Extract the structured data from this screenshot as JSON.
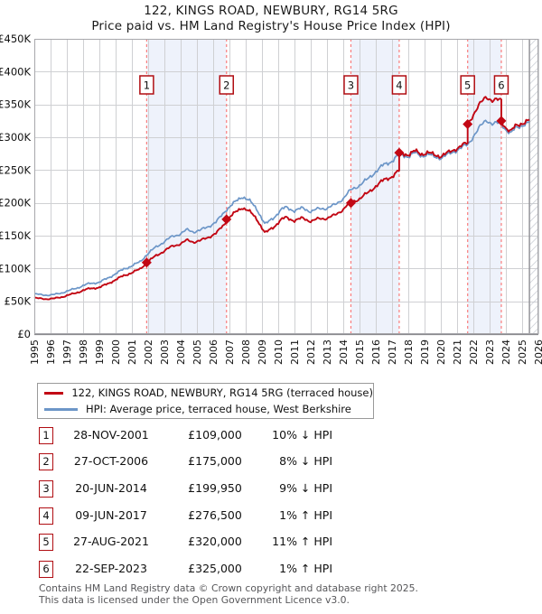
{
  "title": {
    "line1": "122, KINGS ROAD, NEWBURY, RG14 5RG",
    "line2": "Price paid vs. HM Land Registry's House Price Index (HPI)"
  },
  "legend": {
    "items": [
      {
        "label": "122, KINGS ROAD, NEWBURY, RG14 5RG (terraced house)",
        "color": "#c20714"
      },
      {
        "label": "HPI: Average price, terraced house, West Berkshire",
        "color": "#6c96c8"
      }
    ]
  },
  "transactions": [
    {
      "n": "1",
      "date": "28-NOV-2001",
      "price": "£109,000",
      "vs_hpi": "10% ↓ HPI",
      "year_frac": 2001.91,
      "price_k": 109
    },
    {
      "n": "2",
      "date": "27-OCT-2006",
      "price": "£175,000",
      "vs_hpi": "8% ↓ HPI",
      "year_frac": 2006.82,
      "price_k": 175
    },
    {
      "n": "3",
      "date": "20-JUN-2014",
      "price": "£199,950",
      "vs_hpi": "9% ↓ HPI",
      "year_frac": 2014.47,
      "price_k": 199.95
    },
    {
      "n": "4",
      "date": "09-JUN-2017",
      "price": "£276,500",
      "vs_hpi": "1% ↑ HPI",
      "year_frac": 2017.44,
      "price_k": 276.5
    },
    {
      "n": "5",
      "date": "27-AUG-2021",
      "price": "£320,000",
      "vs_hpi": "11% ↑ HPI",
      "year_frac": 2021.65,
      "price_k": 320
    },
    {
      "n": "6",
      "date": "22-SEP-2023",
      "price": "£325,000",
      "vs_hpi": "1% ↑ HPI",
      "year_frac": 2023.72,
      "price_k": 325
    }
  ],
  "footer": {
    "line1": "Contains HM Land Registry data © Crown copyright and database right 2025.",
    "line2": "This data is licensed under the Open Government Licence v3.0."
  },
  "chart_data": {
    "type": "line",
    "title": "Price paid vs. HM Land Registry's House Price Index (HPI)",
    "xlim": [
      1995,
      2026
    ],
    "ylim": [
      0,
      450000
    ],
    "grid": true,
    "legend_position": "below",
    "x_tick_labels": [
      "1995",
      "1996",
      "1997",
      "1998",
      "1999",
      "2000",
      "2001",
      "2002",
      "2003",
      "2004",
      "2005",
      "2006",
      "2007",
      "2008",
      "2009",
      "2010",
      "2011",
      "2012",
      "2013",
      "2014",
      "2015",
      "2016",
      "2017",
      "2018",
      "2019",
      "2020",
      "2021",
      "2022",
      "2023",
      "2024",
      "2025",
      "2026"
    ],
    "y_ticks_k": [
      0,
      50,
      100,
      150,
      200,
      250,
      300,
      350,
      400,
      450
    ],
    "y_tick_labels": [
      "£0",
      "£50K",
      "£100K",
      "£150K",
      "£200K",
      "£250K",
      "£300K",
      "£350K",
      "£400K",
      "£450K"
    ],
    "ownership_bands": [
      [
        2001.91,
        2006.82
      ],
      [
        2014.47,
        2017.44
      ],
      [
        2021.65,
        2023.72
      ]
    ],
    "hatch_from": 2025.45,
    "colors": {
      "property": "#c20714",
      "hpi": "#6c96c8",
      "event_line": "#f97d7d",
      "band": "#eef2fb",
      "grid": "#cfd0d3",
      "border": "#a8a8ac",
      "marker_box_border": "#b00d12"
    },
    "series": [
      {
        "name": "HPI: Average price, terraced house, West Berkshire",
        "units": "GBP_thousands",
        "anchors": [
          [
            1995.0,
            61
          ],
          [
            1995.4,
            60
          ],
          [
            1995.8,
            59.5
          ],
          [
            1996.2,
            60
          ],
          [
            1996.7,
            63
          ],
          [
            1997.1,
            66
          ],
          [
            1997.6,
            70
          ],
          [
            1998.0,
            74
          ],
          [
            1998.4,
            77
          ],
          [
            1999.0,
            79
          ],
          [
            1999.5,
            85
          ],
          [
            2000.0,
            92
          ],
          [
            2000.5,
            99
          ],
          [
            2001.0,
            104
          ],
          [
            2001.5,
            110
          ],
          [
            2001.91,
            121.1
          ],
          [
            2002.5,
            133
          ],
          [
            2003.0,
            141
          ],
          [
            2003.5,
            149
          ],
          [
            2004.0,
            153
          ],
          [
            2004.4,
            159
          ],
          [
            2004.8,
            156
          ],
          [
            2005.2,
            158
          ],
          [
            2005.7,
            164
          ],
          [
            2006.2,
            171
          ],
          [
            2006.82,
            190.2
          ],
          [
            2007.3,
            200
          ],
          [
            2007.8,
            210
          ],
          [
            2008.2,
            204
          ],
          [
            2008.7,
            190
          ],
          [
            2009.2,
            167
          ],
          [
            2009.7,
            177
          ],
          [
            2010.2,
            190
          ],
          [
            2010.5,
            193
          ],
          [
            2011.0,
            188
          ],
          [
            2011.5,
            192
          ],
          [
            2012.0,
            187
          ],
          [
            2012.5,
            191
          ],
          [
            2013.0,
            192
          ],
          [
            2013.5,
            197
          ],
          [
            2014.0,
            207
          ],
          [
            2014.47,
            219.7
          ],
          [
            2015.0,
            227
          ],
          [
            2015.5,
            236
          ],
          [
            2016.0,
            248
          ],
          [
            2016.5,
            258
          ],
          [
            2017.0,
            264
          ],
          [
            2017.44,
            273.8
          ],
          [
            2018.0,
            271
          ],
          [
            2018.4,
            276
          ],
          [
            2018.8,
            272
          ],
          [
            2019.2,
            274
          ],
          [
            2019.6,
            270
          ],
          [
            2020.0,
            269
          ],
          [
            2020.5,
            274
          ],
          [
            2021.0,
            281
          ],
          [
            2021.65,
            288.3
          ],
          [
            2022.0,
            302
          ],
          [
            2022.4,
            315
          ],
          [
            2022.8,
            327
          ],
          [
            2023.2,
            320
          ],
          [
            2023.72,
            321.8
          ],
          [
            2024.0,
            312
          ],
          [
            2024.3,
            305
          ],
          [
            2024.6,
            314
          ],
          [
            2024.9,
            318
          ],
          [
            2025.2,
            320
          ],
          [
            2025.45,
            322
          ]
        ]
      },
      {
        "name": "122, KINGS ROAD, NEWBURY, RG14 5RG (terraced house)",
        "derived": "price paid scaled by HPI between transactions, vertical step at each sale",
        "sale_points_k": [
          [
            2001.91,
            109
          ],
          [
            2006.82,
            175
          ],
          [
            2014.47,
            199.95
          ],
          [
            2017.44,
            276.5
          ],
          [
            2021.65,
            320
          ],
          [
            2023.72,
            325
          ]
        ]
      }
    ]
  }
}
